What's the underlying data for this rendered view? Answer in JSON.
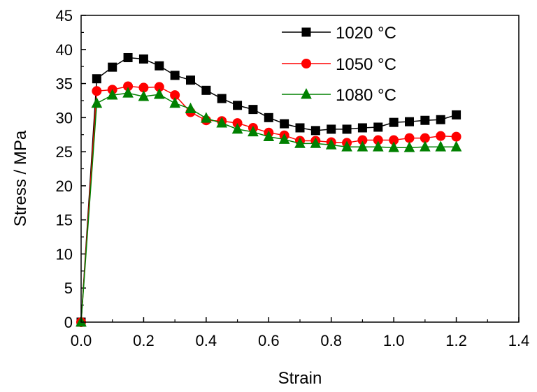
{
  "chart_data": {
    "type": "line",
    "title": "",
    "xlabel": "Strain",
    "ylabel": "Stress / MPa",
    "xlim": [
      0,
      1.4
    ],
    "ylim": [
      0,
      45
    ],
    "xticks": [
      "0.0",
      "0.2",
      "0.4",
      "0.6",
      "0.8",
      "1.0",
      "1.2",
      "1.4"
    ],
    "yticks": [
      "0",
      "5",
      "10",
      "15",
      "20",
      "25",
      "30",
      "35",
      "40",
      "45"
    ],
    "grid": false,
    "legend_position": "top-right",
    "x": [
      0.0,
      0.05,
      0.1,
      0.15,
      0.2,
      0.25,
      0.3,
      0.35,
      0.4,
      0.45,
      0.5,
      0.55,
      0.6,
      0.65,
      0.7,
      0.75,
      0.8,
      0.85,
      0.9,
      0.95,
      1.0,
      1.05,
      1.1,
      1.15,
      1.2
    ],
    "series": [
      {
        "name": "1020 °C",
        "color": "#000000",
        "marker": "square",
        "values": [
          0,
          35.7,
          37.4,
          38.8,
          38.6,
          37.6,
          36.2,
          35.5,
          34.0,
          32.8,
          31.8,
          31.2,
          30.0,
          29.1,
          28.5,
          28.1,
          28.3,
          28.3,
          28.5,
          28.6,
          29.3,
          29.4,
          29.6,
          29.7,
          30.4
        ]
      },
      {
        "name": "1050 °C",
        "color": "#ff0000",
        "marker": "circle",
        "values": [
          0,
          33.9,
          34.1,
          34.6,
          34.4,
          34.5,
          33.3,
          30.8,
          29.6,
          29.5,
          29.2,
          28.5,
          27.8,
          27.4,
          26.6,
          26.6,
          26.4,
          26.3,
          26.7,
          26.7,
          26.7,
          27.0,
          27.0,
          27.3,
          27.2
        ]
      },
      {
        "name": "1080 °C",
        "color": "#008000",
        "marker": "triangle",
        "values": [
          0,
          32.1,
          33.3,
          33.6,
          33.1,
          33.4,
          32.1,
          31.3,
          29.9,
          29.2,
          28.3,
          27.9,
          27.2,
          26.8,
          26.2,
          26.2,
          26.0,
          25.7,
          25.7,
          25.7,
          25.6,
          25.6,
          25.7,
          25.7,
          25.7
        ]
      }
    ]
  }
}
